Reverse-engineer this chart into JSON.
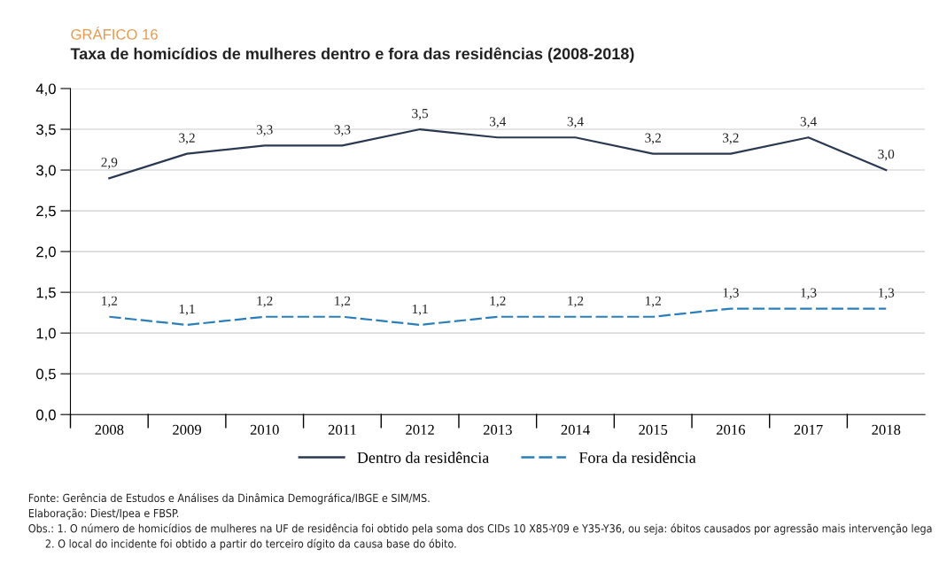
{
  "chart_data": {
    "type": "line",
    "subtitle": "GRÁFICO 16",
    "title": "Taxa de homicídios de mulheres dentro e fora das residências (2008-2018)",
    "categories": [
      "2008",
      "2009",
      "2010",
      "2011",
      "2012",
      "2013",
      "2014",
      "2015",
      "2016",
      "2017",
      "2018"
    ],
    "series": [
      {
        "name": "Dentro da residência",
        "color": "#2b3950",
        "line_style": "solid",
        "values": [
          2.9,
          3.2,
          3.3,
          3.3,
          3.5,
          3.4,
          3.4,
          3.2,
          3.2,
          3.4,
          3.0
        ],
        "value_labels": [
          "2,9",
          "3,2",
          "3,3",
          "3,3",
          "3,5",
          "3,4",
          "3,4",
          "3,2",
          "3,2",
          "3,4",
          "3,0"
        ]
      },
      {
        "name": "Fora da residência",
        "color": "#2a7fb8",
        "line_style": "dashed",
        "values": [
          1.2,
          1.1,
          1.2,
          1.2,
          1.1,
          1.2,
          1.2,
          1.2,
          1.3,
          1.3,
          1.3
        ],
        "value_labels": [
          "1,2",
          "1,1",
          "1,2",
          "1,2",
          "1,1",
          "1,2",
          "1,2",
          "1,2",
          "1,3",
          "1,3",
          "1,3"
        ]
      }
    ],
    "ylim": [
      0,
      4
    ],
    "yticks": [
      {
        "value": 0,
        "label": "0,0"
      },
      {
        "value": 0.5,
        "label": "0,5"
      },
      {
        "value": 1,
        "label": "1,0"
      },
      {
        "value": 1.5,
        "label": "1,5"
      },
      {
        "value": 2,
        "label": "2,0"
      },
      {
        "value": 2.5,
        "label": "2,5"
      },
      {
        "value": 3,
        "label": "3,0"
      },
      {
        "value": 3.5,
        "label": "3,5"
      },
      {
        "value": 4,
        "label": "4,0"
      }
    ],
    "grid": "y",
    "legend": "bottom",
    "marker": "none",
    "annotations": [
      "Fonte: Gerência de Estudos e Análises da Dinâmica Demográfica/IBGE e SIM/MS.",
      "Elaboração: Diest/Ipea e FBSP.",
      "Obs.: 1. O número de homicídios de mulheres na UF de residência foi obtido pela soma dos CIDs 10 X85-Y09 e Y35-Y36, ou seja: óbitos causados por agressão mais intervenção lega",
      "2. O local do incidente foi obtido a partir do terceiro dígito da causa base do óbito."
    ]
  }
}
